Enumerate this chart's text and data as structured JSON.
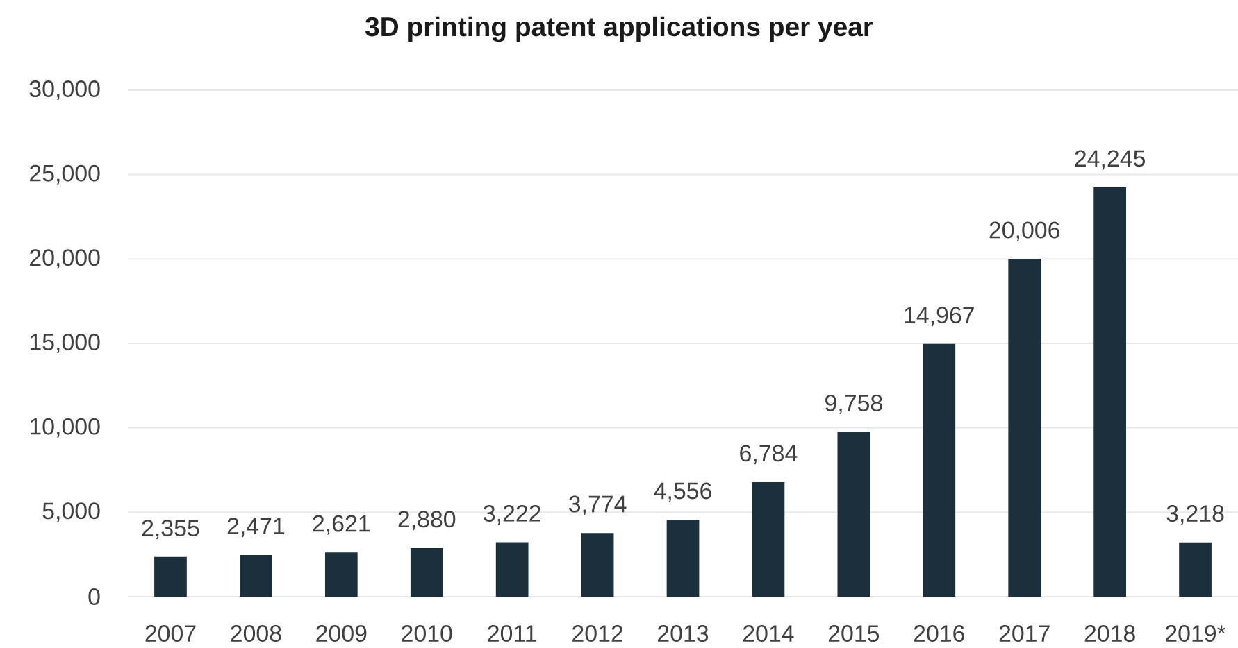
{
  "chart_data": {
    "type": "bar",
    "title": "3D printing patent applications per year",
    "categories": [
      "2007",
      "2008",
      "2009",
      "2010",
      "2011",
      "2012",
      "2013",
      "2014",
      "2015",
      "2016",
      "2017",
      "2018",
      "2019*"
    ],
    "values": [
      2355,
      2471,
      2621,
      2880,
      3222,
      3774,
      4556,
      6784,
      9758,
      14967,
      20006,
      24245,
      3218
    ],
    "value_labels": [
      "2,355",
      "2,471",
      "2,621",
      "2,880",
      "3,222",
      "3,774",
      "4,556",
      "6,784",
      "9,758",
      "14,967",
      "20,006",
      "24,245",
      "3,218"
    ],
    "color": "#1c2f3d",
    "ylim": [
      0,
      30000
    ],
    "yticks": [
      0,
      {
        "value": 5000,
        "label": "5,000"
      },
      {
        "value": 10000,
        "label": "10,000"
      },
      {
        "value": 15000,
        "label": "15,000"
      },
      {
        "value": 20000,
        "label": "20,000"
      },
      {
        "value": 25000,
        "label": "25,000"
      },
      {
        "value": 30000,
        "label": "30,000"
      }
    ],
    "grid": "y"
  }
}
